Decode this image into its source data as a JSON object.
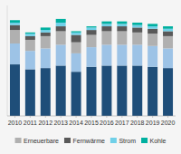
{
  "chart_data": {
    "type": "bar",
    "stacked": true,
    "categories": [
      "2010",
      "2011",
      "2012",
      "2013",
      "2014",
      "2015",
      "2016",
      "2017",
      "2018",
      "2019",
      "2020"
    ],
    "series": [
      {
        "color": "#1f4e79",
        "values": [
          42,
          38,
          39,
          41,
          36,
          40,
          41,
          41,
          41,
          40,
          39
        ]
      },
      {
        "color": "#9dc3e6",
        "values": [
          17,
          15,
          16,
          17,
          15,
          16,
          17,
          17,
          17,
          17,
          16
        ]
      },
      {
        "name": "Erneuerbare",
        "color": "#b0b0b0",
        "values": [
          11,
          9,
          10,
          11,
          9,
          10,
          11,
          11,
          10,
          10,
          10
        ]
      },
      {
        "name": "Fernwärme",
        "color": "#595959",
        "values": [
          4,
          3,
          3,
          4,
          6,
          4,
          4,
          4,
          4,
          4,
          4
        ]
      },
      {
        "name": "Strom",
        "color": "#70d0e8",
        "values": [
          2,
          2,
          2,
          3,
          2,
          2,
          2,
          2,
          2,
          2,
          2
        ]
      },
      {
        "name": "Kohle",
        "color": "#00b0a0",
        "values": [
          2,
          1,
          2,
          3,
          1,
          1,
          2,
          2,
          2,
          2,
          2
        ]
      }
    ],
    "ylim": [
      0,
      90
    ],
    "grid": false,
    "legend": "bottom",
    "tick_labels": "x"
  }
}
